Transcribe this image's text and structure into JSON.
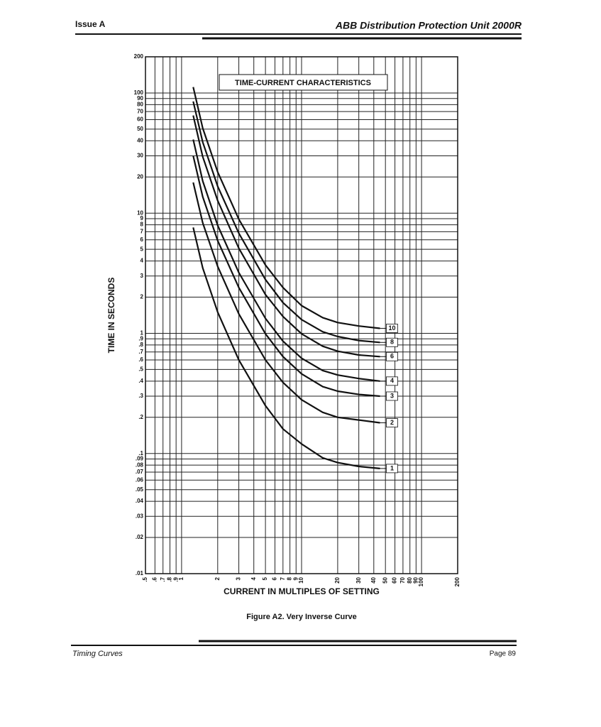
{
  "header": {
    "issue": "Issue A",
    "title": "ABB Distribution Protection Unit 2000R"
  },
  "footer": {
    "section": "Timing Curves",
    "page": "Page 89"
  },
  "caption": "Figure A2. Very Inverse Curve",
  "chart_data": {
    "type": "line",
    "title": "TIME-CURRENT CHARACTERISTICS",
    "x_label": "CURRENT IN MULTIPLES OF SETTING",
    "y_label": "TIME IN SECONDS",
    "xscale": "log",
    "yscale": "log",
    "grid": true,
    "xlim": [
      0.5,
      200
    ],
    "ylim": [
      0.01,
      200
    ],
    "xticks": [
      {
        "value": 0.5,
        "label": ".5"
      },
      {
        "value": 0.6,
        "label": ".6"
      },
      {
        "value": 0.7,
        "label": ".7"
      },
      {
        "value": 0.8,
        "label": ".8"
      },
      {
        "value": 0.9,
        "label": ".9"
      },
      1,
      2,
      3,
      4,
      5,
      6,
      7,
      8,
      9,
      10,
      20,
      30,
      40,
      50,
      60,
      70,
      80,
      90,
      100,
      200
    ],
    "yticks": [
      {
        "value": 0.01,
        "label": ".01"
      },
      {
        "value": 0.02,
        "label": ".02"
      },
      {
        "value": 0.03,
        "label": ".03"
      },
      {
        "value": 0.04,
        "label": ".04"
      },
      {
        "value": 0.05,
        "label": ".05"
      },
      {
        "value": 0.06,
        "label": ".06"
      },
      {
        "value": 0.07,
        "label": ".07"
      },
      {
        "value": 0.08,
        "label": ".08"
      },
      {
        "value": 0.09,
        "label": ".09"
      },
      {
        "value": 0.1,
        "label": ".1"
      },
      {
        "value": 0.2,
        "label": ".2"
      },
      {
        "value": 0.3,
        "label": ".3"
      },
      {
        "value": 0.4,
        "label": ".4"
      },
      {
        "value": 0.5,
        "label": ".5"
      },
      {
        "value": 0.6,
        "label": ".6"
      },
      {
        "value": 0.7,
        "label": ".7"
      },
      {
        "value": 0.8,
        "label": ".8"
      },
      {
        "value": 0.9,
        "label": ".9"
      },
      1,
      2,
      3,
      4,
      5,
      6,
      7,
      8,
      9,
      10,
      20,
      30,
      40,
      50,
      60,
      70,
      80,
      90,
      100,
      200
    ],
    "x": [
      1.25,
      1.5,
      2,
      3,
      5,
      7,
      10,
      15,
      20,
      30,
      45
    ],
    "series": [
      {
        "name": "1",
        "color": "#111111",
        "values": [
          7.6,
          3.5,
          1.5,
          0.6,
          0.25,
          0.16,
          0.12,
          0.092,
          0.084,
          0.078,
          0.075
        ]
      },
      {
        "name": "2",
        "color": "#111111",
        "values": [
          18,
          8.3,
          3.6,
          1.45,
          0.6,
          0.39,
          0.28,
          0.22,
          0.2,
          0.19,
          0.18
        ]
      },
      {
        "name": "3",
        "color": "#111111",
        "values": [
          30,
          13.7,
          5.9,
          2.4,
          0.99,
          0.64,
          0.46,
          0.36,
          0.33,
          0.31,
          0.3
        ]
      },
      {
        "name": "4",
        "color": "#111111",
        "values": [
          41,
          18.5,
          7.9,
          3.2,
          1.33,
          0.86,
          0.62,
          0.49,
          0.45,
          0.42,
          0.4
        ]
      },
      {
        "name": "6",
        "color": "#111111",
        "values": [
          65,
          29.5,
          12.7,
          5.1,
          2.1,
          1.38,
          0.99,
          0.78,
          0.71,
          0.66,
          0.64
        ]
      },
      {
        "name": "8",
        "color": "#111111",
        "values": [
          85,
          39,
          16.7,
          6.8,
          2.8,
          1.8,
          1.3,
          1.03,
          0.94,
          0.87,
          0.84
        ]
      },
      {
        "name": "10",
        "color": "#111111",
        "values": [
          112,
          51,
          22,
          8.9,
          3.7,
          2.4,
          1.7,
          1.35,
          1.23,
          1.15,
          1.1
        ]
      }
    ]
  }
}
